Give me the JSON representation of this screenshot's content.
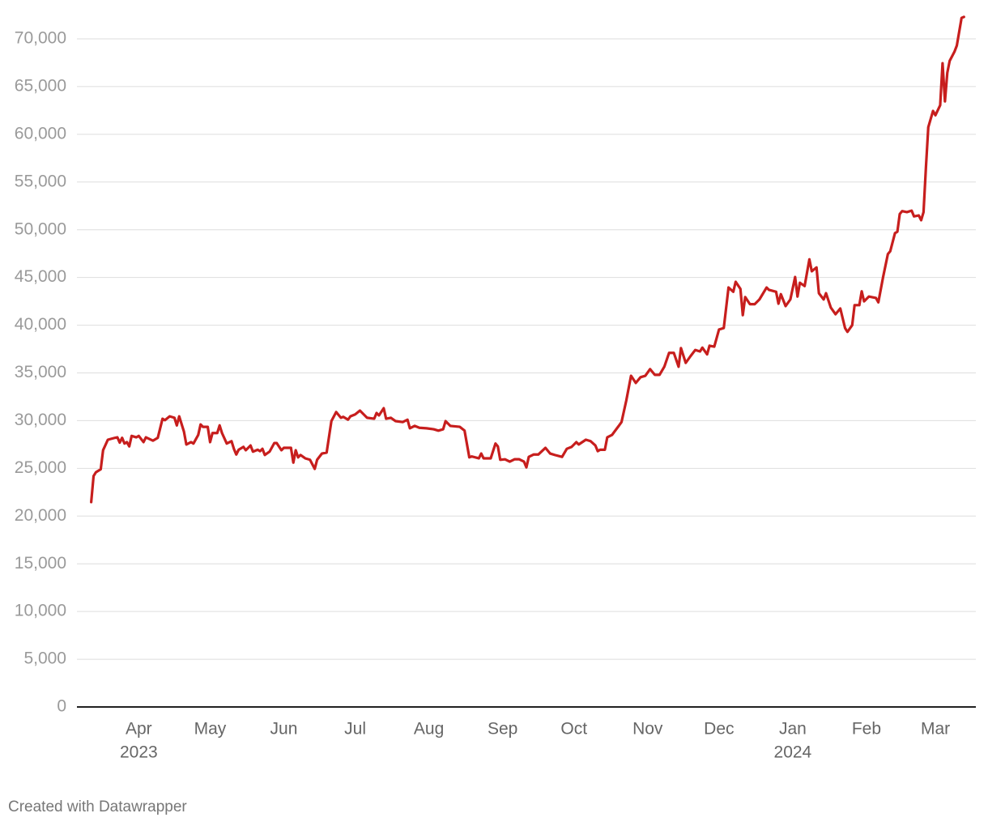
{
  "chart_data": {
    "type": "line",
    "credit": "Created with Datawrapper",
    "x": [
      0,
      1,
      2,
      4,
      5,
      7,
      10,
      11,
      12,
      13,
      14,
      15,
      16,
      17,
      19,
      20,
      22,
      23,
      26,
      28,
      30,
      31,
      33,
      35,
      36,
      37,
      39,
      40,
      42,
      43,
      45,
      46,
      47,
      49,
      50,
      51,
      53,
      54,
      55,
      57,
      59,
      60,
      61,
      62,
      64,
      65,
      67,
      68,
      70,
      71,
      72,
      73,
      75,
      77,
      78,
      80,
      81,
      84,
      85,
      86,
      87,
      88,
      90,
      92,
      94,
      95,
      97,
      99,
      101,
      103,
      105,
      106,
      108,
      109,
      111,
      113,
      116,
      119,
      120,
      121,
      123,
      124,
      126,
      128,
      131,
      133,
      134,
      136,
      138,
      141,
      144,
      146,
      148,
      149,
      151,
      155,
      157,
      159,
      160,
      163,
      164,
      165,
      168,
      170,
      171,
      172,
      174,
      176,
      178,
      180,
      182,
      183,
      184,
      186,
      188,
      191,
      193,
      195,
      198,
      200,
      202,
      204,
      205,
      208,
      210,
      212,
      213,
      214,
      216,
      217,
      219,
      222,
      223,
      225,
      227,
      229,
      231,
      233,
      235,
      237,
      239,
      241,
      243,
      245,
      247,
      248,
      250,
      252,
      254,
      256,
      257,
      259,
      260,
      262,
      264,
      266,
      268,
      270,
      271,
      273,
      274,
      275,
      277,
      279,
      281,
      284,
      285,
      288,
      289,
      290,
      292,
      294,
      296,
      297,
      298,
      300,
      302,
      303,
      305,
      306,
      308,
      309,
      311,
      313,
      315,
      317,
      318,
      320,
      321,
      323,
      324,
      325,
      327,
      330,
      331,
      333,
      335,
      336,
      338,
      339,
      340,
      341,
      343,
      345,
      346,
      348,
      349,
      350,
      351,
      352,
      354,
      355,
      357,
      358,
      359,
      360,
      361,
      363,
      364,
      366,
      367
    ],
    "series": [
      {
        "color": "#c71e1d",
        "values": [
          21470,
          24200,
          24600,
          24900,
          26900,
          28000,
          28200,
          28250,
          27700,
          28200,
          27600,
          27750,
          27300,
          28400,
          28250,
          28400,
          27750,
          28250,
          27900,
          28200,
          30200,
          30050,
          30450,
          30300,
          29500,
          30450,
          28850,
          27500,
          27750,
          27600,
          28500,
          29600,
          29350,
          29350,
          27750,
          28700,
          28700,
          29500,
          28700,
          27600,
          27850,
          27050,
          26450,
          26950,
          27250,
          26900,
          27400,
          26750,
          26950,
          26800,
          27050,
          26400,
          26750,
          27650,
          27650,
          26900,
          27150,
          27150,
          25600,
          26900,
          26150,
          26400,
          26050,
          25900,
          24950,
          25900,
          26550,
          26650,
          29950,
          30900,
          30300,
          30400,
          30100,
          30450,
          30650,
          31050,
          30300,
          30200,
          30800,
          30550,
          31300,
          30200,
          30300,
          29950,
          29850,
          30100,
          29200,
          29450,
          29250,
          29200,
          29100,
          28950,
          29100,
          29950,
          29450,
          29350,
          28950,
          26150,
          26250,
          26050,
          26550,
          26050,
          26050,
          27600,
          27300,
          25900,
          25950,
          25700,
          25950,
          25950,
          25700,
          25100,
          26200,
          26450,
          26450,
          27150,
          26550,
          26400,
          26200,
          27050,
          27250,
          27750,
          27500,
          28000,
          27850,
          27400,
          26800,
          26950,
          26950,
          28250,
          28500,
          29500,
          29850,
          32100,
          34700,
          33950,
          34550,
          34700,
          35400,
          34800,
          34800,
          35650,
          37100,
          37100,
          35650,
          37600,
          36050,
          36750,
          37400,
          37250,
          37650,
          36950,
          37850,
          37750,
          39550,
          39700,
          43950,
          43500,
          44550,
          43800,
          41050,
          42950,
          42200,
          42200,
          42700,
          43950,
          43700,
          43500,
          42250,
          43250,
          42000,
          42700,
          45050,
          43000,
          44450,
          44100,
          46900,
          45650,
          46050,
          43350,
          42700,
          43350,
          41850,
          41150,
          41750,
          39700,
          39300,
          40000,
          42100,
          42100,
          43550,
          42500,
          43000,
          42850,
          42400,
          45050,
          47450,
          47750,
          49650,
          49800,
          51650,
          51950,
          51850,
          52000,
          51400,
          51500,
          51000,
          51850,
          56500,
          60750,
          62450,
          62000,
          63050,
          67450,
          63450,
          66450,
          67700,
          68650,
          69300,
          72200,
          72300
        ]
      }
    ],
    "xlim": [
      -6,
      372
    ],
    "xticks": [
      {
        "value": 20,
        "label": "Apr"
      },
      {
        "value": 50,
        "label": "May"
      },
      {
        "value": 81,
        "label": "Jun"
      },
      {
        "value": 111,
        "label": "Jul"
      },
      {
        "value": 142,
        "label": "Aug"
      },
      {
        "value": 173,
        "label": "Sep"
      },
      {
        "value": 203,
        "label": "Oct"
      },
      {
        "value": 234,
        "label": "Nov"
      },
      {
        "value": 264,
        "label": "Dec"
      },
      {
        "value": 295,
        "label": "Jan"
      },
      {
        "value": 326,
        "label": "Feb"
      },
      {
        "value": 355,
        "label": "Mar"
      }
    ],
    "xtick_years": [
      {
        "value": 20,
        "label": "2023"
      },
      {
        "value": 295,
        "label": "2024"
      }
    ],
    "ylim": [
      0,
      70000
    ],
    "yticks": [
      0,
      {
        "value": 5000,
        "label": "5,000"
      },
      {
        "value": 10000,
        "label": "10,000"
      },
      {
        "value": 15000,
        "label": "15,000"
      },
      {
        "value": 20000,
        "label": "20,000"
      },
      {
        "value": 25000,
        "label": "25,000"
      },
      {
        "value": 30000,
        "label": "30,000"
      },
      {
        "value": 35000,
        "label": "35,000"
      },
      {
        "value": 40000,
        "label": "40,000"
      },
      {
        "value": 45000,
        "label": "45,000"
      },
      {
        "value": 50000,
        "label": "50,000"
      },
      {
        "value": 55000,
        "label": "55,000"
      },
      {
        "value": 60000,
        "label": "60,000"
      },
      {
        "value": 65000,
        "label": "65,000"
      },
      {
        "value": 70000,
        "label": "70,000"
      }
    ],
    "grid": true
  }
}
